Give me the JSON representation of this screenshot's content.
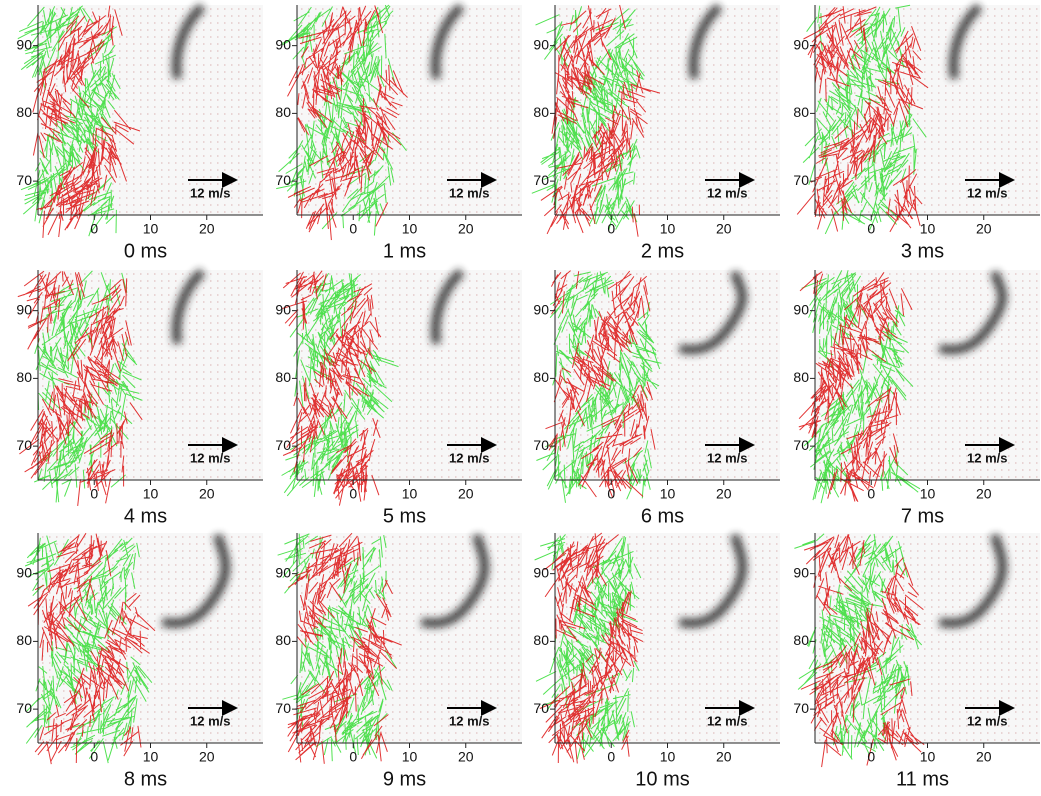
{
  "xlim": [
    -10,
    30
  ],
  "ylim": [
    65,
    96
  ],
  "xticks": [
    0,
    10,
    20
  ],
  "yticks": [
    70,
    80,
    90
  ],
  "panels": [
    {
      "label": "0 ms",
      "scale_label": "12 m/s"
    },
    {
      "label": "1 ms",
      "scale_label": "12 m/s"
    },
    {
      "label": "2 ms",
      "scale_label": "12 m/s"
    },
    {
      "label": "3 ms",
      "scale_label": "12 m/s"
    },
    {
      "label": "4 ms",
      "scale_label": "12 m/s"
    },
    {
      "label": "5 ms",
      "scale_label": "12 m/s"
    },
    {
      "label": "6 ms",
      "scale_label": "12 m/s"
    },
    {
      "label": "7 ms",
      "scale_label": "12 m/s"
    },
    {
      "label": "8 ms",
      "scale_label": "12 m/s"
    },
    {
      "label": "9 ms",
      "scale_label": "12 m/s"
    },
    {
      "label": "10 ms",
      "scale_label": "12 m/s"
    },
    {
      "label": "11 ms",
      "scale_label": "12 m/s"
    }
  ]
}
